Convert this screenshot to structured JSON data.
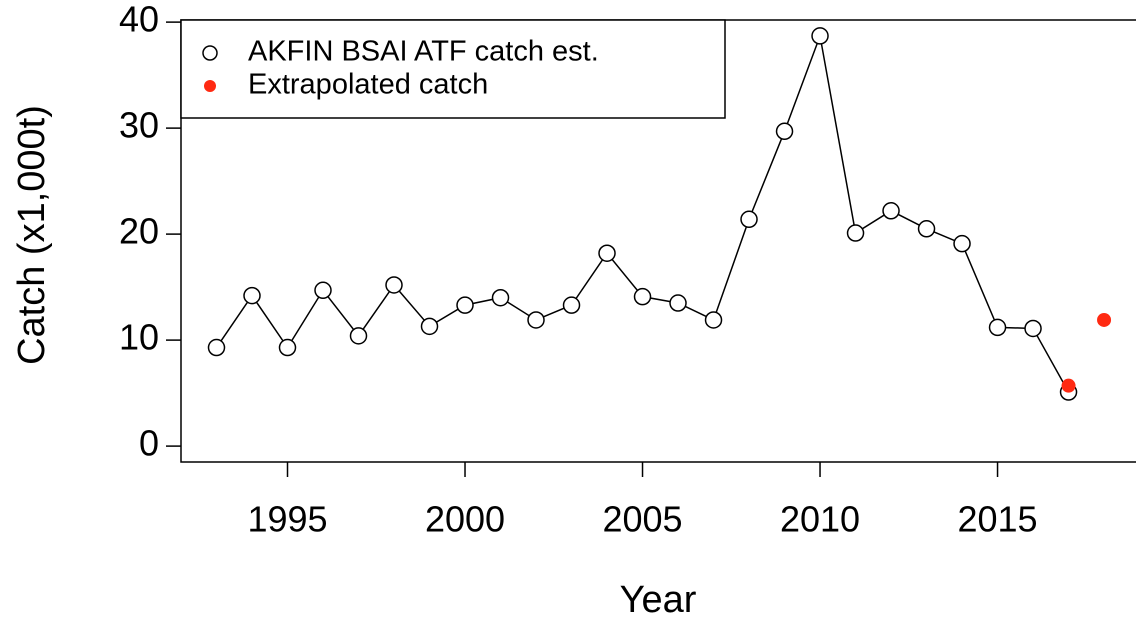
{
  "chart_data": {
    "type": "line",
    "xlabel": "Year",
    "ylabel": "Catch (x1,000t)",
    "xlim": [
      1992,
      2018.9
    ],
    "xticks": [
      1995,
      2000,
      2005,
      2010,
      2015
    ],
    "ylim": [
      -1.5,
      40.2
    ],
    "yticks": [
      0,
      10,
      20,
      30,
      40
    ],
    "legend": "top-left",
    "series": [
      {
        "name": "AKFIN BSAI ATF catch est.",
        "color": "#000000",
        "marker": "open-circle",
        "line": true,
        "x": [
          1993,
          1994,
          1995,
          1996,
          1997,
          1998,
          1999,
          2000,
          2001,
          2002,
          2003,
          2004,
          2005,
          2006,
          2007,
          2008,
          2009,
          2010,
          2011,
          2012,
          2013,
          2014,
          2015,
          2016,
          2017
        ],
        "values": [
          9.3,
          14.2,
          9.3,
          14.7,
          10.4,
          15.2,
          11.3,
          13.3,
          14.0,
          11.9,
          13.3,
          18.2,
          14.1,
          13.5,
          11.9,
          21.4,
          29.7,
          38.7,
          20.1,
          22.2,
          20.5,
          19.1,
          11.2,
          11.1,
          5.1
        ]
      },
      {
        "name": "Extrapolated catch",
        "color": "#ff2a12",
        "marker": "filled-circle",
        "line": false,
        "x": [
          2017,
          2018
        ],
        "values": [
          5.7,
          11.9
        ]
      }
    ]
  }
}
